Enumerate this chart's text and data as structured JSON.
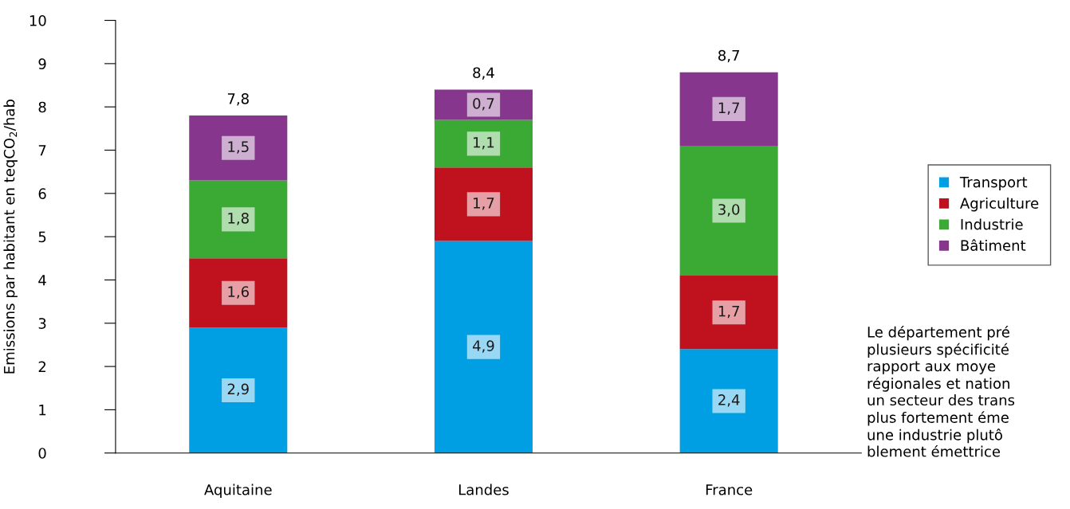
{
  "chart_data": {
    "type": "bar",
    "stacked": true,
    "ylabel": "Emissions par habitant en teqCO$_{2}$/hab",
    "categories": [
      "Aquitaine",
      "Landes",
      "France"
    ],
    "series": [
      {
        "name": "Transport",
        "color": "#009fe3",
        "values": [
          2.9,
          4.9,
          2.4
        ],
        "value_labels": [
          "2,9",
          "4,9",
          "2,4"
        ]
      },
      {
        "name": "Agriculture",
        "color": "#c0111f",
        "values": [
          1.6,
          1.7,
          1.7
        ],
        "value_labels": [
          "1,6",
          "1,7",
          "1,7"
        ]
      },
      {
        "name": "Industrie",
        "color": "#3aaa35",
        "values": [
          1.8,
          1.1,
          3.0
        ],
        "value_labels": [
          "1,8",
          "1,1",
          "3,0"
        ]
      },
      {
        "name": "Bâtiment",
        "color": "#86368d",
        "values": [
          1.5,
          0.7,
          1.7
        ],
        "value_labels": [
          "1,5",
          "0,7",
          "1,7"
        ]
      }
    ],
    "totals": [
      "7,8",
      "8,4",
      "8,7"
    ],
    "ylim": [
      0,
      10
    ],
    "yticks": [
      0,
      1,
      2,
      3,
      4,
      5,
      6,
      7,
      8,
      9,
      10
    ],
    "grid": false,
    "legend": "right",
    "annotations": [
      "Le département pré\nplusieurs spécificité\nrapport aux moye\nrégionales et nation\nun secteur des trans\nplus fortement éme\nune industrie plutô\nblement émettrice"
    ]
  }
}
